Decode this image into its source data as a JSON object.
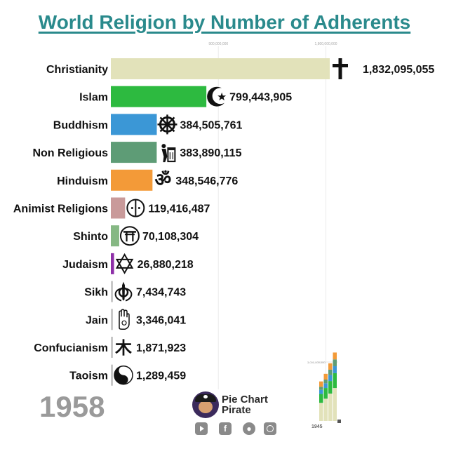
{
  "title": "World Religion by Number of Adherents",
  "year": "1958",
  "brand": {
    "name": "Pie Chart Pirate"
  },
  "socials": [
    "youtube-icon",
    "facebook-icon",
    "reddit-icon",
    "instagram-icon"
  ],
  "chart_data": {
    "type": "bar",
    "orientation": "horizontal",
    "title": "World Religion by Number of Adherents",
    "xlim": [
      0,
      1900000000
    ],
    "grid": true,
    "ticks": [
      {
        "value": 900000000,
        "label": "900,000,000"
      },
      {
        "value": 1800000000,
        "label": "1,800,000,000"
      }
    ],
    "categories": [
      "Christianity",
      "Islam",
      "Buddhism",
      "Non Religious",
      "Hinduism",
      "Animist Religions",
      "Shinto",
      "Judaism",
      "Sikh",
      "Jain",
      "Confucianism",
      "Taoism"
    ],
    "values": [
      1832095055,
      799443905,
      384505761,
      383890115,
      348546776,
      119416487,
      70108304,
      26880218,
      7434743,
      3346041,
      1871923,
      1289459
    ],
    "value_labels": [
      "1,832,095,055",
      "799,443,905",
      "384,505,761",
      "383,890,115",
      "348,546,776",
      "119,416,487",
      "70,108,304",
      "26,880,218",
      "7,434,743",
      "3,346,041",
      "1,871,923",
      "1,289,459"
    ],
    "colors": [
      "#e2e2ba",
      "#2dba40",
      "#3b97d6",
      "#5e9c76",
      "#f39a38",
      "#c99a9a",
      "#86b884",
      "#8e2fa8",
      "#c8c8c8",
      "#c8c8c8",
      "#c8c8c8",
      "#c8c8c8"
    ],
    "icons": [
      "latin-cross-icon",
      "crescent-star-icon",
      "dharma-wheel-icon",
      "recycle-bin-icon",
      "om-icon",
      "animist-circle-icon",
      "torii-gate-icon",
      "star-of-david-icon",
      "khanda-icon",
      "jain-hand-icon",
      "confucian-symbol-icon",
      "yin-yang-icon"
    ],
    "mini_chart": {
      "tick_label": "3,000,000,000",
      "year_label": "1945",
      "colors": [
        "#e2e2ba",
        "#2dba40",
        "#3b97d6",
        "#5e9c76",
        "#f39a38"
      ],
      "stacks": [
        [
          880000000,
          430000000,
          200000000,
          150000000,
          260000000
        ],
        [
          1080000000,
          520000000,
          230000000,
          180000000,
          280000000
        ],
        [
          1330000000,
          610000000,
          290000000,
          260000000,
          310000000
        ],
        [
          1600000000,
          720000000,
          340000000,
          330000000,
          335000000
        ]
      ]
    }
  }
}
